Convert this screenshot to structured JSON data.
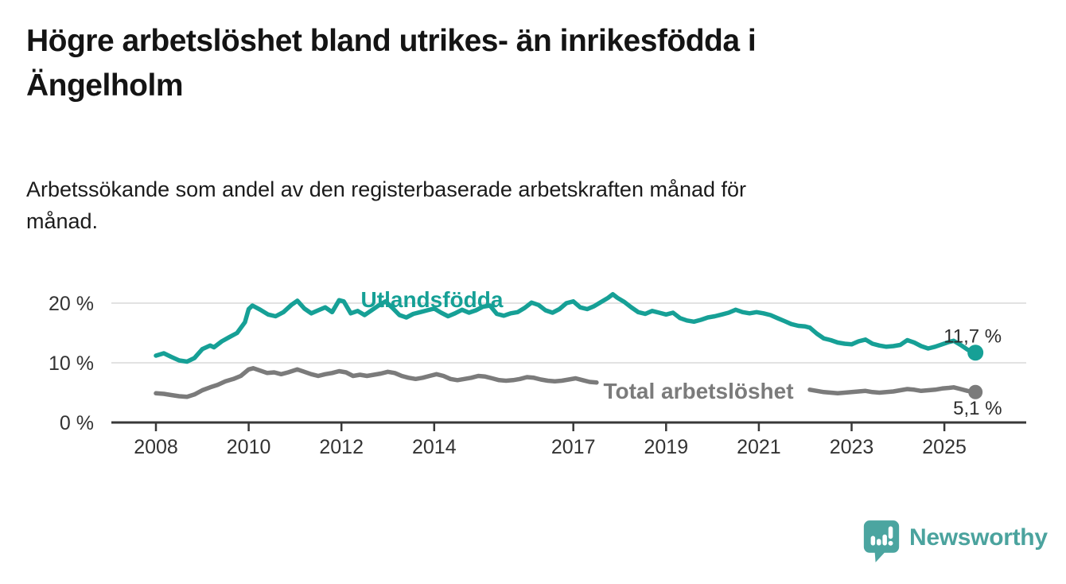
{
  "page": {
    "title": "Högre arbetslöshet bland utrikes- än inrikesfödda i\nÄngelholm",
    "subtitle": "Arbetssökande som andel av den registerbaserade arbetskraften månad för\nmånad."
  },
  "branding": {
    "logo_text": "Newsworthy",
    "logo_color": "#4BA5A0",
    "logo_icon": "bar-chart-speech-bubble-icon"
  },
  "chart_data": {
    "type": "line",
    "title": "Högre arbetslöshet bland utrikes- än inrikesfödda i Ängelholm",
    "xlabel": "",
    "ylabel": "",
    "unit": "%",
    "frequency": "monthly",
    "x_range": [
      2008.0,
      2025.67
    ],
    "ylim": [
      0,
      23
    ],
    "grid": "horizontal",
    "x_ticks": [
      2008,
      2010,
      2012,
      2014,
      2017,
      2019,
      2021,
      2023,
      2025
    ],
    "x_tick_labels": [
      "2008",
      "2010",
      "2012",
      "2014",
      "2017",
      "2019",
      "2021",
      "2023",
      "2025"
    ],
    "y_ticks": [
      0,
      10,
      20
    ],
    "y_tick_labels": [
      "0 %",
      "10 %",
      "20 %"
    ],
    "colors": {
      "utlandsfodda": "#16A096",
      "total": "#7B7B7B",
      "gridline": "#d9d9d9",
      "axis": "#383838"
    },
    "series": [
      {
        "name": "Utlandsfödda",
        "color": "#16A096",
        "end_value": 11.7,
        "end_label": "11,7 %",
        "points": [
          [
            2008.0,
            11.2
          ],
          [
            2008.17,
            11.6
          ],
          [
            2008.33,
            11.0
          ],
          [
            2008.5,
            10.4
          ],
          [
            2008.67,
            10.2
          ],
          [
            2008.83,
            10.8
          ],
          [
            2009.0,
            12.3
          ],
          [
            2009.17,
            12.9
          ],
          [
            2009.25,
            12.6
          ],
          [
            2009.42,
            13.6
          ],
          [
            2009.58,
            14.3
          ],
          [
            2009.75,
            15.0
          ],
          [
            2009.92,
            16.8
          ],
          [
            2010.0,
            19.0
          ],
          [
            2010.08,
            19.6
          ],
          [
            2010.25,
            18.9
          ],
          [
            2010.42,
            18.1
          ],
          [
            2010.58,
            17.8
          ],
          [
            2010.75,
            18.5
          ],
          [
            2010.92,
            19.7
          ],
          [
            2011.05,
            20.4
          ],
          [
            2011.2,
            19.1
          ],
          [
            2011.35,
            18.3
          ],
          [
            2011.5,
            18.8
          ],
          [
            2011.65,
            19.3
          ],
          [
            2011.8,
            18.5
          ],
          [
            2011.95,
            20.5
          ],
          [
            2012.05,
            20.3
          ],
          [
            2012.2,
            18.3
          ],
          [
            2012.35,
            18.7
          ],
          [
            2012.5,
            18.0
          ],
          [
            2012.65,
            18.8
          ],
          [
            2012.8,
            19.6
          ],
          [
            2012.95,
            20.3
          ],
          [
            2013.1,
            19.2
          ],
          [
            2013.25,
            18.0
          ],
          [
            2013.4,
            17.6
          ],
          [
            2013.55,
            18.2
          ],
          [
            2013.7,
            18.5
          ],
          [
            2013.85,
            18.8
          ],
          [
            2014.0,
            19.1
          ],
          [
            2014.15,
            18.4
          ],
          [
            2014.3,
            17.8
          ],
          [
            2014.45,
            18.3
          ],
          [
            2014.6,
            18.9
          ],
          [
            2014.75,
            18.4
          ],
          [
            2014.9,
            18.8
          ],
          [
            2015.05,
            19.4
          ],
          [
            2015.2,
            19.6
          ],
          [
            2015.35,
            18.2
          ],
          [
            2015.5,
            17.9
          ],
          [
            2015.65,
            18.3
          ],
          [
            2015.8,
            18.5
          ],
          [
            2015.95,
            19.2
          ],
          [
            2016.1,
            20.1
          ],
          [
            2016.25,
            19.7
          ],
          [
            2016.4,
            18.8
          ],
          [
            2016.55,
            18.4
          ],
          [
            2016.7,
            19.0
          ],
          [
            2016.85,
            20.0
          ],
          [
            2017.0,
            20.3
          ],
          [
            2017.15,
            19.3
          ],
          [
            2017.3,
            19.0
          ],
          [
            2017.45,
            19.5
          ],
          [
            2017.6,
            20.2
          ],
          [
            2017.75,
            20.9
          ],
          [
            2017.85,
            21.5
          ],
          [
            2017.95,
            20.9
          ],
          [
            2018.1,
            20.2
          ],
          [
            2018.25,
            19.3
          ],
          [
            2018.4,
            18.5
          ],
          [
            2018.55,
            18.2
          ],
          [
            2018.7,
            18.7
          ],
          [
            2018.85,
            18.4
          ],
          [
            2019.0,
            18.1
          ],
          [
            2019.15,
            18.4
          ],
          [
            2019.3,
            17.5
          ],
          [
            2019.45,
            17.1
          ],
          [
            2019.6,
            16.9
          ],
          [
            2019.75,
            17.2
          ],
          [
            2019.9,
            17.6
          ],
          [
            2020.05,
            17.8
          ],
          [
            2020.2,
            18.1
          ],
          [
            2020.35,
            18.4
          ],
          [
            2020.5,
            18.9
          ],
          [
            2020.65,
            18.5
          ],
          [
            2020.8,
            18.3
          ],
          [
            2020.95,
            18.5
          ],
          [
            2021.1,
            18.3
          ],
          [
            2021.25,
            18.0
          ],
          [
            2021.4,
            17.5
          ],
          [
            2021.55,
            17.0
          ],
          [
            2021.7,
            16.5
          ],
          [
            2021.85,
            16.2
          ],
          [
            2022.0,
            16.1
          ],
          [
            2022.1,
            15.9
          ],
          [
            2022.25,
            14.9
          ],
          [
            2022.4,
            14.1
          ],
          [
            2022.55,
            13.8
          ],
          [
            2022.7,
            13.4
          ],
          [
            2022.85,
            13.2
          ],
          [
            2023.0,
            13.1
          ],
          [
            2023.15,
            13.6
          ],
          [
            2023.3,
            13.9
          ],
          [
            2023.45,
            13.2
          ],
          [
            2023.6,
            12.9
          ],
          [
            2023.75,
            12.7
          ],
          [
            2023.9,
            12.8
          ],
          [
            2024.05,
            13.0
          ],
          [
            2024.2,
            13.8
          ],
          [
            2024.35,
            13.4
          ],
          [
            2024.5,
            12.8
          ],
          [
            2024.65,
            12.4
          ],
          [
            2024.8,
            12.7
          ],
          [
            2024.95,
            13.1
          ],
          [
            2025.1,
            13.5
          ],
          [
            2025.2,
            13.7
          ],
          [
            2025.35,
            13.0
          ],
          [
            2025.5,
            12.2
          ],
          [
            2025.67,
            11.7
          ]
        ]
      },
      {
        "name": "Total arbetslöshet",
        "color": "#7B7B7B",
        "end_value": 5.1,
        "end_label": "5,1 %",
        "label_gap_x": [
          2017.52,
          2022.06
        ],
        "points": [
          [
            2008.0,
            4.9
          ],
          [
            2008.17,
            4.8
          ],
          [
            2008.33,
            4.6
          ],
          [
            2008.5,
            4.4
          ],
          [
            2008.67,
            4.3
          ],
          [
            2008.83,
            4.7
          ],
          [
            2009.0,
            5.4
          ],
          [
            2009.17,
            5.9
          ],
          [
            2009.33,
            6.3
          ],
          [
            2009.5,
            6.9
          ],
          [
            2009.67,
            7.3
          ],
          [
            2009.83,
            7.8
          ],
          [
            2010.0,
            8.9
          ],
          [
            2010.1,
            9.1
          ],
          [
            2010.25,
            8.7
          ],
          [
            2010.4,
            8.3
          ],
          [
            2010.55,
            8.4
          ],
          [
            2010.7,
            8.1
          ],
          [
            2010.85,
            8.4
          ],
          [
            2011.05,
            8.9
          ],
          [
            2011.2,
            8.5
          ],
          [
            2011.35,
            8.1
          ],
          [
            2011.5,
            7.8
          ],
          [
            2011.65,
            8.1
          ],
          [
            2011.8,
            8.3
          ],
          [
            2011.95,
            8.6
          ],
          [
            2012.1,
            8.4
          ],
          [
            2012.25,
            7.8
          ],
          [
            2012.4,
            8.0
          ],
          [
            2012.55,
            7.8
          ],
          [
            2012.7,
            8.0
          ],
          [
            2012.85,
            8.2
          ],
          [
            2013.0,
            8.5
          ],
          [
            2013.15,
            8.3
          ],
          [
            2013.3,
            7.8
          ],
          [
            2013.45,
            7.5
          ],
          [
            2013.6,
            7.3
          ],
          [
            2013.75,
            7.5
          ],
          [
            2013.9,
            7.8
          ],
          [
            2014.05,
            8.1
          ],
          [
            2014.2,
            7.8
          ],
          [
            2014.35,
            7.3
          ],
          [
            2014.5,
            7.1
          ],
          [
            2014.65,
            7.3
          ],
          [
            2014.8,
            7.5
          ],
          [
            2014.95,
            7.8
          ],
          [
            2015.1,
            7.7
          ],
          [
            2015.25,
            7.4
          ],
          [
            2015.4,
            7.1
          ],
          [
            2015.55,
            7.0
          ],
          [
            2015.7,
            7.1
          ],
          [
            2015.85,
            7.3
          ],
          [
            2016.0,
            7.6
          ],
          [
            2016.15,
            7.5
          ],
          [
            2016.3,
            7.2
          ],
          [
            2016.45,
            7.0
          ],
          [
            2016.6,
            6.9
          ],
          [
            2016.75,
            7.0
          ],
          [
            2016.9,
            7.2
          ],
          [
            2017.05,
            7.4
          ],
          [
            2017.2,
            7.1
          ],
          [
            2017.35,
            6.8
          ],
          [
            2017.5,
            6.7
          ],
          [
            2017.65,
            6.8
          ],
          [
            2017.8,
            7.0
          ],
          [
            2017.95,
            7.1
          ],
          [
            2018.1,
            6.9
          ],
          [
            2018.3,
            6.5
          ],
          [
            2018.5,
            6.2
          ],
          [
            2018.7,
            6.3
          ],
          [
            2018.9,
            6.4
          ],
          [
            2019.1,
            6.3
          ],
          [
            2019.3,
            6.1
          ],
          [
            2019.5,
            5.9
          ],
          [
            2019.7,
            6.0
          ],
          [
            2019.9,
            6.2
          ],
          [
            2020.1,
            6.5
          ],
          [
            2020.3,
            6.9
          ],
          [
            2020.5,
            7.2
          ],
          [
            2020.7,
            7.1
          ],
          [
            2020.9,
            7.0
          ],
          [
            2021.1,
            6.8
          ],
          [
            2021.3,
            6.5
          ],
          [
            2021.5,
            6.2
          ],
          [
            2021.7,
            5.9
          ],
          [
            2021.9,
            5.7
          ],
          [
            2022.1,
            5.5
          ],
          [
            2022.25,
            5.3
          ],
          [
            2022.4,
            5.1
          ],
          [
            2022.55,
            5.0
          ],
          [
            2022.7,
            4.9
          ],
          [
            2022.85,
            5.0
          ],
          [
            2023.0,
            5.1
          ],
          [
            2023.15,
            5.2
          ],
          [
            2023.3,
            5.3
          ],
          [
            2023.45,
            5.1
          ],
          [
            2023.6,
            5.0
          ],
          [
            2023.75,
            5.1
          ],
          [
            2023.9,
            5.2
          ],
          [
            2024.05,
            5.4
          ],
          [
            2024.2,
            5.6
          ],
          [
            2024.35,
            5.5
          ],
          [
            2024.5,
            5.3
          ],
          [
            2024.65,
            5.4
          ],
          [
            2024.8,
            5.5
          ],
          [
            2024.95,
            5.7
          ],
          [
            2025.1,
            5.8
          ],
          [
            2025.2,
            5.9
          ],
          [
            2025.35,
            5.6
          ],
          [
            2025.5,
            5.3
          ],
          [
            2025.67,
            5.1
          ]
        ]
      }
    ],
    "legend_position": "inline-labels"
  }
}
